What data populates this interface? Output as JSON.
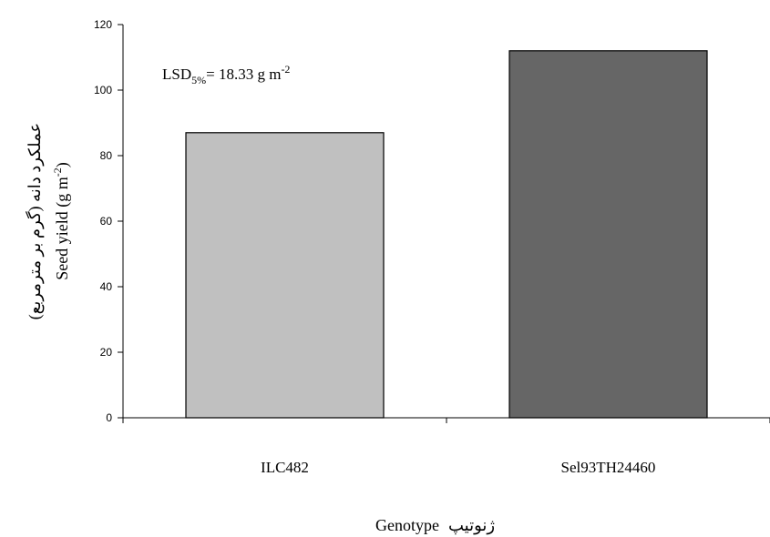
{
  "chart_data": {
    "type": "bar",
    "categories": [
      "ILC482",
      "Sel93TH24460"
    ],
    "values": [
      87,
      112
    ],
    "bar_colors": [
      "#c0c0c0",
      "#666666"
    ],
    "ylim": [
      0,
      120
    ],
    "yticks": [
      0,
      20,
      40,
      60,
      80,
      100,
      120
    ],
    "ylabel_en": "Seed yield (g m",
    "ylabel_unit_exp": "-2",
    "ylabel_close": ")",
    "ylabel_fa": "عملکرد دانه (گرم بر مترمربع)",
    "xlabel_en": "Genotype",
    "xlabel_fa": "ژنوتیپ",
    "annotation": {
      "prefix": "LSD",
      "subscript": "5%",
      "text": "= 18.33 g m",
      "exp": "-2"
    },
    "grid": false
  }
}
